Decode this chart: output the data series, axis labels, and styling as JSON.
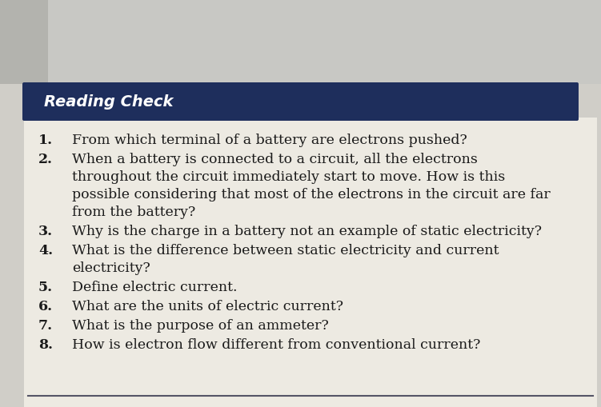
{
  "title": "Reading Check",
  "title_bg_color": "#1e2e5c",
  "title_text_color": "#ffffff",
  "title_fontsize": 14,
  "body_bg_color": "#e8e4dc",
  "top_bg_color": "#d0cec8",
  "questions": [
    {
      "num": "1.",
      "text": "From which terminal of a battery are electrons pushed?",
      "lines": 1
    },
    {
      "num": "2.",
      "text": "When a battery is connected to a circuit, all the electrons\nthroughout the circuit immediately start to move. How is this\npossible considering that most of the electrons in the circuit are far\nfrom the battery?",
      "lines": 4
    },
    {
      "num": "3.",
      "text": "Why is the charge in a battery not an example of static electricity?",
      "lines": 1
    },
    {
      "num": "4.",
      "text": "What is the difference between static electricity and current\nelectricity?",
      "lines": 2
    },
    {
      "num": "5.",
      "text": "Define electric current.",
      "lines": 1
    },
    {
      "num": "6.",
      "text": "What are the units of electric current?",
      "lines": 1
    },
    {
      "num": "7.",
      "text": "What is the purpose of an ammeter?",
      "lines": 1
    },
    {
      "num": "8.",
      "text": "How is electron flow different from conventional current?",
      "lines": 1
    }
  ],
  "text_color": "#1a1a1a",
  "text_fontsize": 12.5,
  "num_fontsize": 12.5,
  "bottom_line_color": "#555566",
  "figsize": [
    7.51,
    5.09
  ],
  "dpi": 100
}
